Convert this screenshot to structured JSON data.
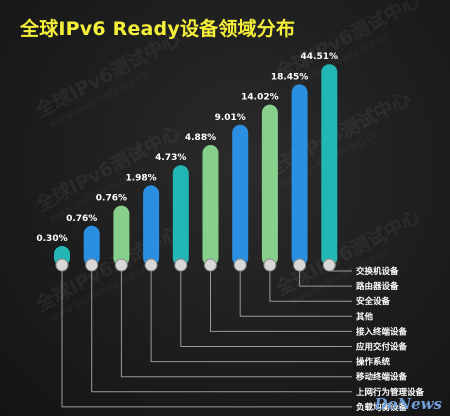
{
  "title": "全球IPv6 Ready设备领域分布",
  "watermark": {
    "text": "全球IPv6测试中心",
    "subtext": "www.ipv6ready.org.cn"
  },
  "brand": "DoNews",
  "colors": {
    "title": "#f4ef3a",
    "blue": "#2a8fe0",
    "green": "#86d08c",
    "teal": "#22b7b5",
    "cap": "#d8d8d8",
    "leader": "#9a9a9a"
  },
  "chart_data": {
    "type": "bar",
    "title": "全球IPv6 Ready设备领域分布",
    "categories": [
      "负载均衡设备",
      "上网行为管理设备",
      "移动终端设备",
      "操作系统",
      "应用交付设备",
      "接入终端设备",
      "其他",
      "安全设备",
      "路由器设备",
      "交换机设备"
    ],
    "values": [
      0.3,
      0.76,
      0.76,
      1.98,
      4.73,
      4.88,
      9.01,
      14.02,
      18.45,
      44.51
    ],
    "labels": [
      "0.30%",
      "0.76%",
      "0.76%",
      "1.98%",
      "4.73%",
      "4.88%",
      "9.01%",
      "14.02%",
      "18.45%",
      "44.51%"
    ],
    "bar_colors": [
      "teal",
      "blue",
      "green",
      "blue",
      "teal",
      "green",
      "blue",
      "green",
      "blue",
      "teal"
    ],
    "unit": "%"
  }
}
